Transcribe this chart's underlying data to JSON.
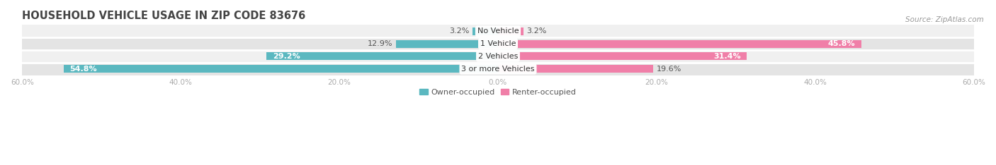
{
  "title": "HOUSEHOLD VEHICLE USAGE IN ZIP CODE 83676",
  "source": "Source: ZipAtlas.com",
  "categories": [
    "No Vehicle",
    "1 Vehicle",
    "2 Vehicles",
    "3 or more Vehicles"
  ],
  "owner_values": [
    3.2,
    12.9,
    29.2,
    54.8
  ],
  "renter_values": [
    3.2,
    45.8,
    31.4,
    19.6
  ],
  "owner_color": "#5BB8C0",
  "renter_color": "#F07FA8",
  "axis_limit": 60.0,
  "bar_height": 0.62,
  "fig_bg_color": "#FFFFFF",
  "row_bg_colors": [
    "#F0F0F0",
    "#E4E4E4"
  ],
  "title_fontsize": 10.5,
  "source_fontsize": 7.5,
  "value_fontsize": 8,
  "tick_fontsize": 7.5,
  "legend_fontsize": 8,
  "white_label_threshold_owner": 20.0,
  "white_label_threshold_renter": 30.0
}
